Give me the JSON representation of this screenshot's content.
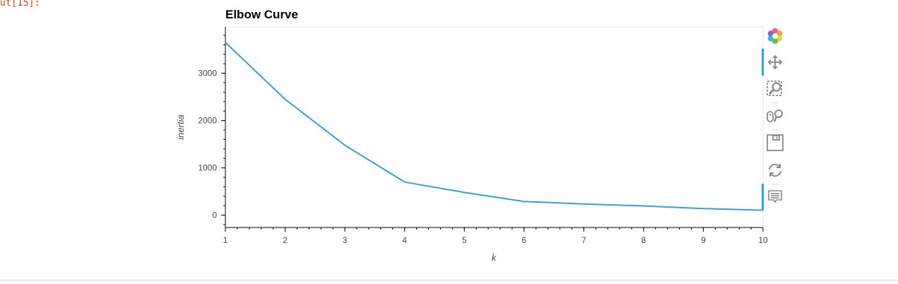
{
  "cell": {
    "prompt": "ut[15]:"
  },
  "chart_data": {
    "type": "line",
    "title": "Elbow Curve",
    "xlabel": "k",
    "ylabel": "inertia",
    "x": [
      1,
      2,
      3,
      4,
      5,
      6,
      7,
      8,
      9,
      10
    ],
    "series": [
      {
        "values": [
          3650,
          2450,
          1480,
          700,
          480,
          290,
          235,
          195,
          140,
          105
        ]
      }
    ],
    "xlim": [
      1,
      10
    ],
    "ylim": [
      -260,
      3980
    ],
    "yticks": [
      0,
      1000,
      2000,
      3000
    ],
    "xticks": [
      1,
      2,
      3,
      4,
      5,
      6,
      7,
      8,
      9,
      10
    ],
    "line_color": "#30a2da",
    "grid": false
  },
  "toolbar": {
    "tools": [
      {
        "name": "bokeh-logo-icon"
      },
      {
        "name": "pan-tool-icon",
        "active": true
      },
      {
        "name": "box-zoom-tool-icon"
      },
      {
        "name": "wheel-zoom-tool-icon"
      },
      {
        "name": "save-tool-icon"
      },
      {
        "name": "reset-tool-icon"
      },
      {
        "name": "hover-tool-icon",
        "active": true
      }
    ]
  }
}
